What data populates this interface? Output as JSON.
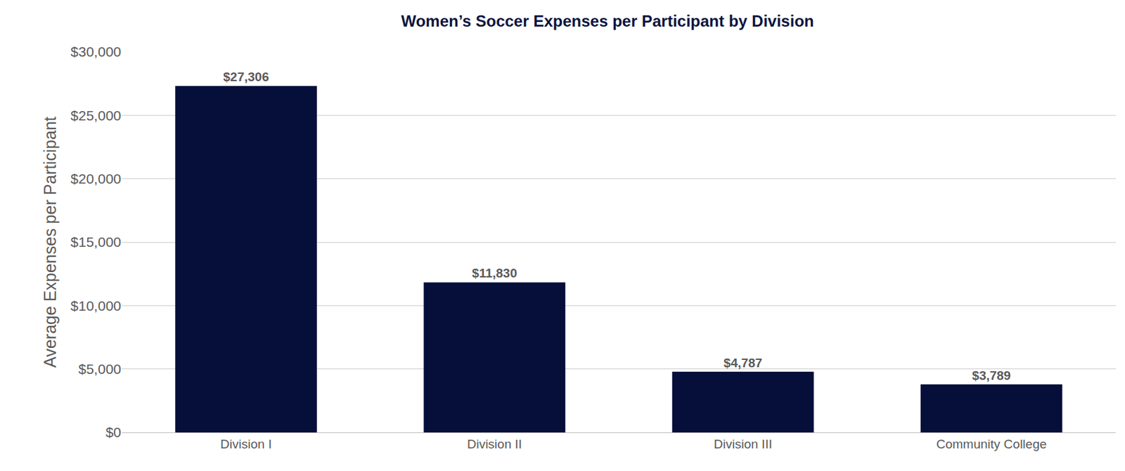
{
  "chart_data": {
    "type": "bar",
    "title": "Women’s Soccer Expenses per Participant by Division",
    "y_label": "Average Expenses per Participant",
    "categories": [
      "Division I",
      "Division II",
      "Division III",
      "Community College"
    ],
    "values": [
      27306,
      11830,
      4787,
      3789
    ],
    "value_labels": [
      "$27,306",
      "$11,830",
      "$4,787",
      "$3,789"
    ],
    "color": "#060e3a",
    "ylim": [
      0,
      30000
    ],
    "yticks": [
      {
        "value": 0,
        "label": "$0"
      },
      {
        "value": 5000,
        "label": "$5,000"
      },
      {
        "value": 10000,
        "label": "$10,000"
      },
      {
        "value": 15000,
        "label": "$15,000"
      },
      {
        "value": 20000,
        "label": "$20,000"
      },
      {
        "value": 25000,
        "label": "$25,000"
      },
      {
        "value": 30000,
        "label": "$30,000"
      }
    ],
    "grid": true,
    "data_labels": true
  }
}
